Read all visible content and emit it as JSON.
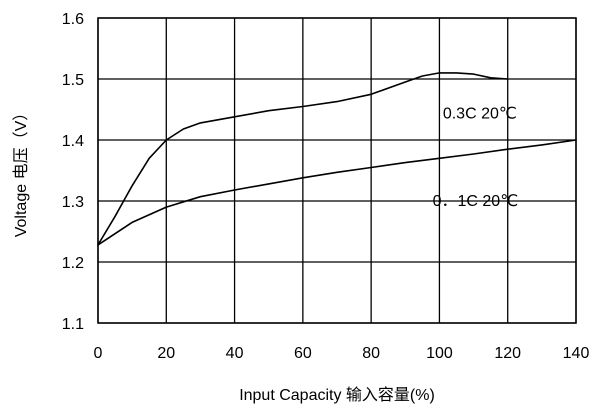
{
  "chart_data": {
    "type": "line",
    "title": "",
    "xlabel": "Input Capacity  输入容量(%)",
    "ylabel": "Voltage 电压（V）",
    "xlim": [
      0,
      140
    ],
    "ylim": [
      1.1,
      1.6
    ],
    "x_ticks": [
      "0",
      "20",
      "40",
      "60",
      "80",
      "100",
      "120",
      "140"
    ],
    "y_ticks": [
      "1.1",
      "1.2",
      "1.3",
      "1.4",
      "1.5",
      "1.6"
    ],
    "grid": true,
    "series": [
      {
        "name": "0.3C 20℃",
        "x": [
          0,
          5,
          10,
          15,
          20,
          25,
          30,
          40,
          50,
          60,
          70,
          80,
          90,
          95,
          100,
          105,
          110,
          115,
          120
        ],
        "y": [
          1.228,
          1.275,
          1.325,
          1.37,
          1.4,
          1.418,
          1.428,
          1.438,
          1.448,
          1.455,
          1.463,
          1.475,
          1.495,
          1.505,
          1.51,
          1.51,
          1.508,
          1.502,
          1.5
        ]
      },
      {
        "name": "0．1C 20℃",
        "x": [
          0,
          10,
          20,
          30,
          40,
          50,
          60,
          70,
          80,
          90,
          100,
          110,
          120,
          130,
          140
        ],
        "y": [
          1.228,
          1.265,
          1.29,
          1.307,
          1.318,
          1.328,
          1.338,
          1.347,
          1.355,
          1.363,
          1.37,
          1.377,
          1.385,
          1.392,
          1.4
        ]
      }
    ],
    "annotations": [
      {
        "text": "0.3C 20℃",
        "x": 101,
        "y": 1.435
      },
      {
        "text": "0．1C 20℃",
        "x": 98,
        "y": 1.292
      }
    ]
  }
}
